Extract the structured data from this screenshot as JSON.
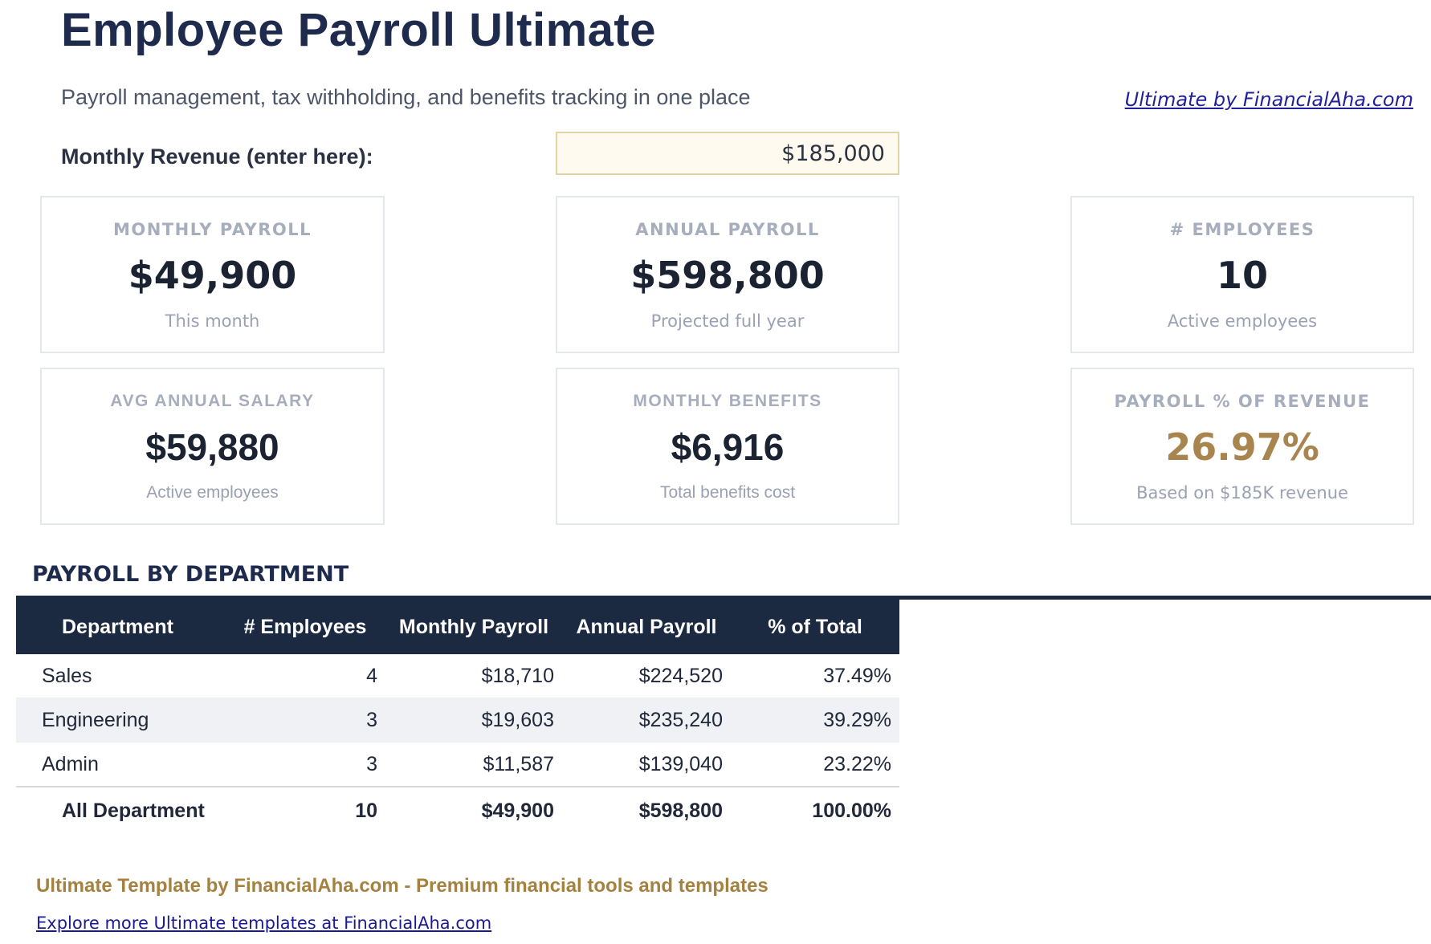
{
  "page": {
    "title": "Employee Payroll Ultimate",
    "subtitle": "Payroll management, tax withholding, and benefits tracking in one place",
    "brand_link": "Ultimate by FinancialAha.com",
    "revenue_label": "Monthly Revenue (enter here):",
    "revenue_value": "$185,000"
  },
  "cards": [
    {
      "label": "MONTHLY PAYROLL",
      "value": "$49,900",
      "sub": "This month"
    },
    {
      "label": "ANNUAL PAYROLL",
      "value": "$598,800",
      "sub": "Projected full year"
    },
    {
      "label": "# EMPLOYEES",
      "value": "10",
      "sub": "Active employees"
    },
    {
      "label": "AVG ANNUAL SALARY",
      "value": "$59,880",
      "sub": "Active employees"
    },
    {
      "label": "MONTHLY BENEFITS",
      "value": "$6,916",
      "sub": "Total benefits cost"
    },
    {
      "label": "PAYROLL % OF REVENUE",
      "value": "26.97%",
      "sub": "Based on $185K revenue"
    }
  ],
  "table": {
    "section_title": "PAYROLL BY DEPARTMENT",
    "headers": [
      "Department",
      "# Employees",
      "Monthly Payroll",
      "Annual Payroll",
      "% of Total"
    ],
    "rows": [
      {
        "department": "Sales",
        "employees": "4",
        "monthly": "$18,710",
        "annual": "$224,520",
        "pct": "37.49%"
      },
      {
        "department": "Engineering",
        "employees": "3",
        "monthly": "$19,603",
        "annual": "$235,240",
        "pct": "39.29%"
      },
      {
        "department": "Admin",
        "employees": "3",
        "monthly": "$11,587",
        "annual": "$139,040",
        "pct": "23.22%"
      }
    ],
    "total": {
      "department": "All Department",
      "employees": "10",
      "monthly": "$49,900",
      "annual": "$598,800",
      "pct": "100.00%"
    }
  },
  "footer": {
    "credit": "Ultimate Template by FinancialAha.com - Premium financial tools and templates",
    "link": "Explore more Ultimate templates at FinancialAha.com"
  },
  "colors": {
    "title_navy": "#1f2b4d",
    "table_header_bg": "#1b2941",
    "value_dark": "#1b2232",
    "gold_accent": "#a8854e",
    "footer_gold": "#a5813f",
    "link_blue": "#201f9e",
    "input_bg": "#fefaef",
    "input_border": "#ded5a7",
    "row_alt_bg": "#eff1f4",
    "card_label_gray": "#a6adbc"
  }
}
